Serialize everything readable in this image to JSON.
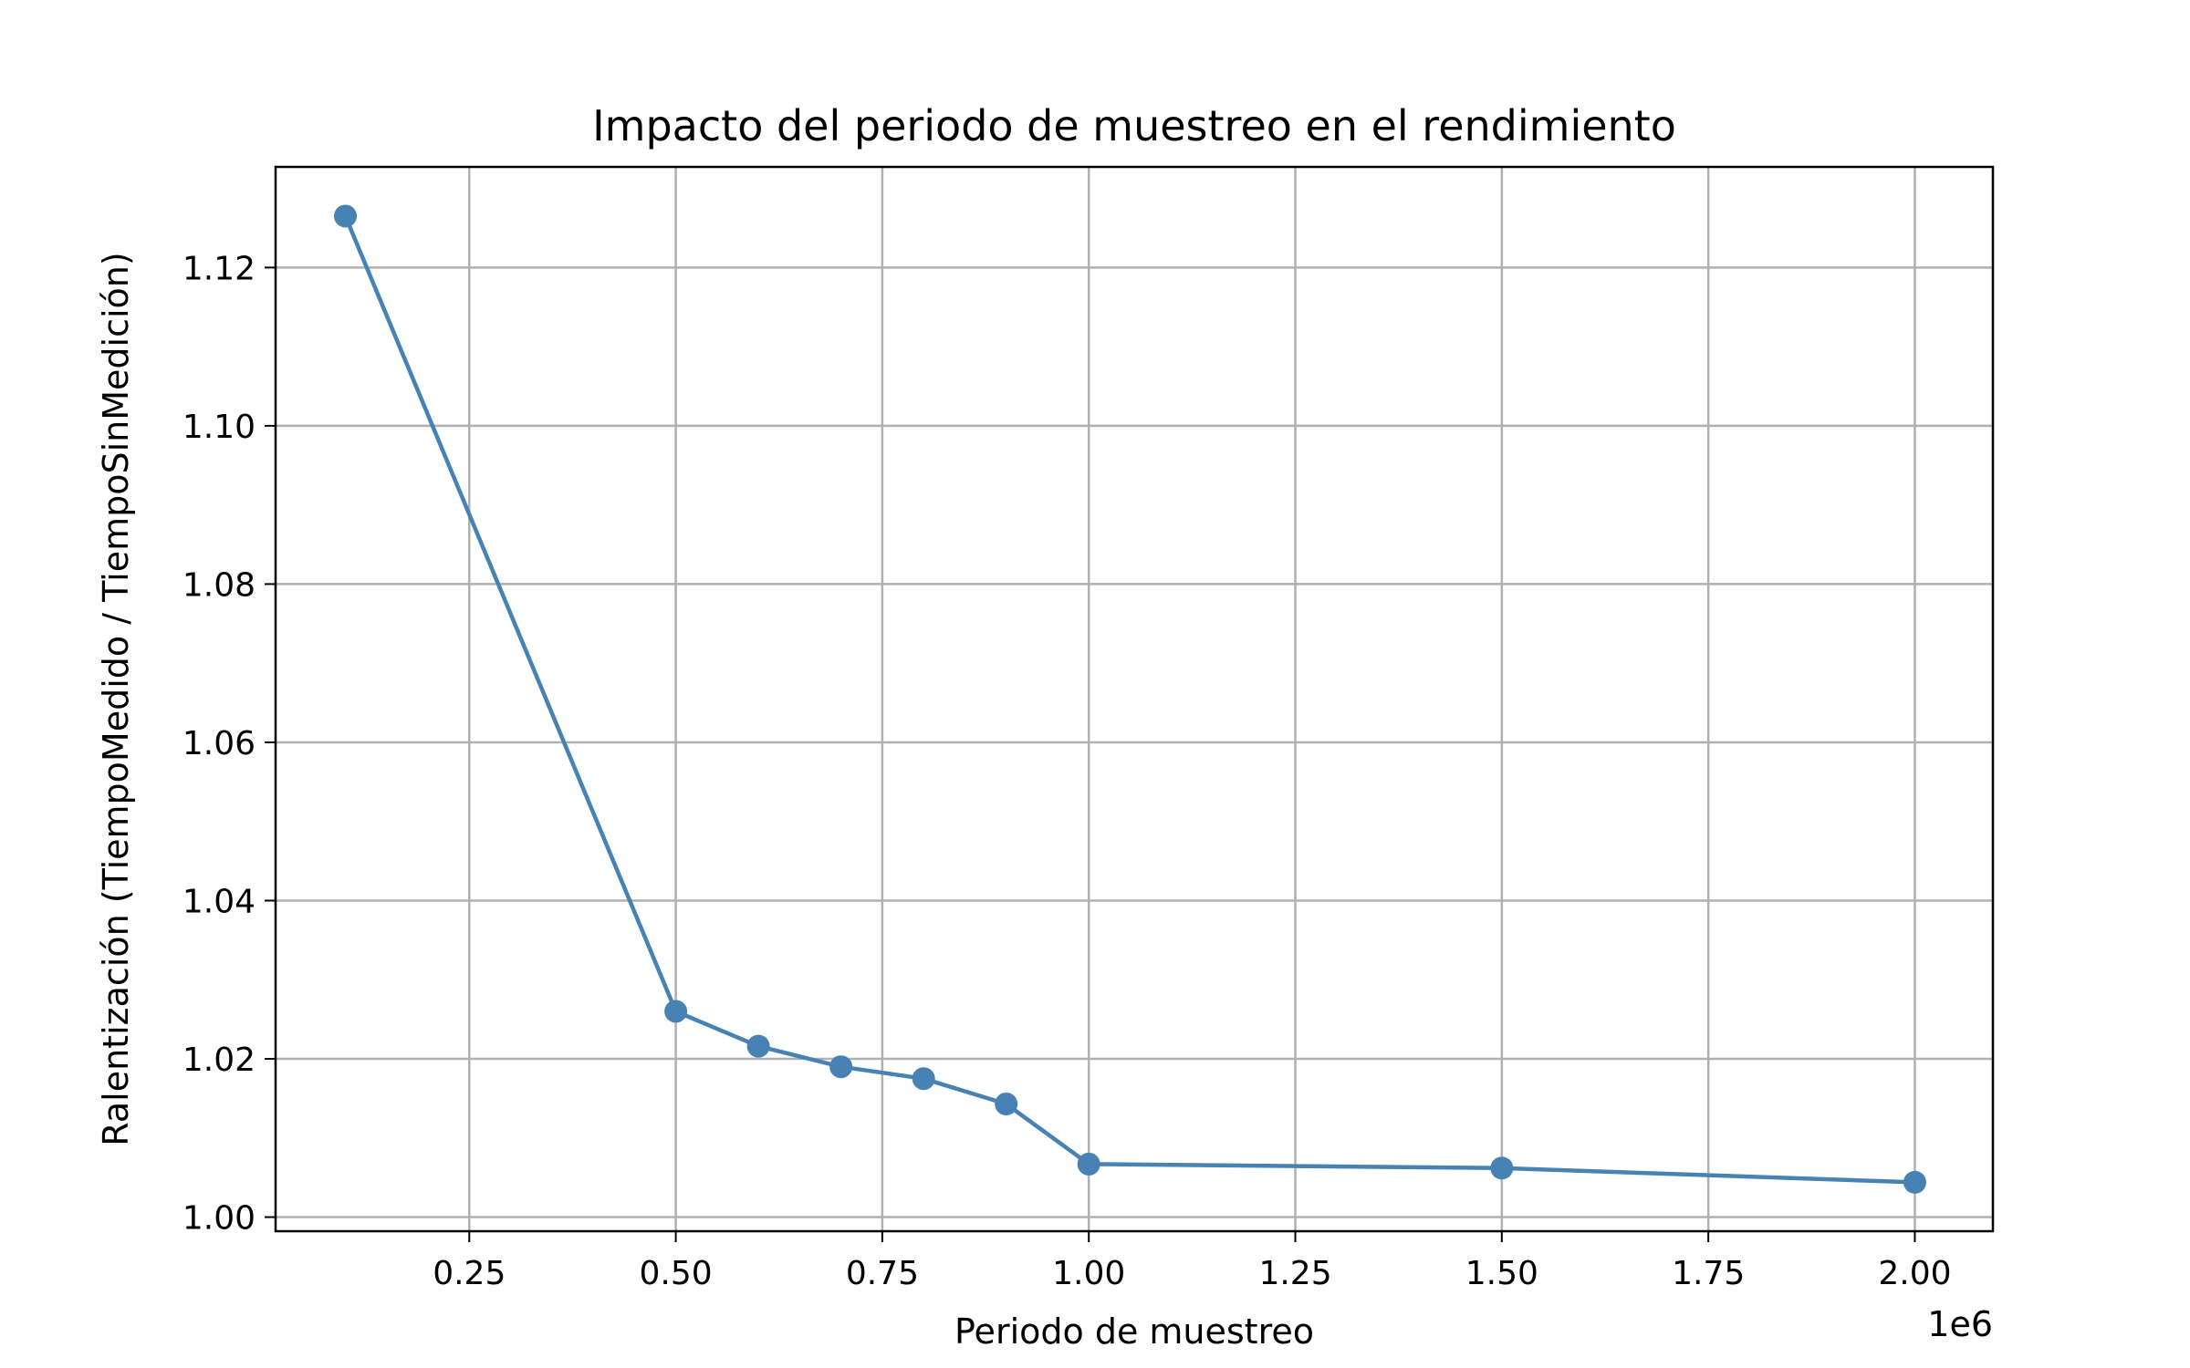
{
  "chart_data": {
    "type": "line",
    "title": "Impacto del periodo de muestreo en el rendimiento",
    "xlabel": "Periodo de muestreo",
    "ylabel": "Ralentización (TiempoMedido / TiempoSinMedición)",
    "x_offset_label": "1e6",
    "x_scale": 1000000,
    "xlim": [
      0.0155,
      2.0945
    ],
    "ylim": [
      0.99822,
      1.13272
    ],
    "xticks": [
      0.25,
      0.5,
      0.75,
      1.0,
      1.25,
      1.5,
      1.75,
      2.0
    ],
    "xtick_labels": [
      "0.25",
      "0.50",
      "0.75",
      "1.00",
      "1.25",
      "1.50",
      "1.75",
      "2.00"
    ],
    "yticks": [
      1.0,
      1.02,
      1.04,
      1.06,
      1.08,
      1.1,
      1.12
    ],
    "ytick_labels": [
      "1.00",
      "1.02",
      "1.04",
      "1.06",
      "1.08",
      "1.10",
      "1.12"
    ],
    "grid": true,
    "series": [
      {
        "color": "#4682b4",
        "marker": "circle",
        "x": [
          100000,
          500000,
          600000,
          700000,
          800000,
          900000,
          1000000,
          1500000,
          2000000
        ],
        "y": [
          1.1265,
          1.026,
          1.0216,
          1.019,
          1.0175,
          1.0143,
          1.0067,
          1.0062,
          1.0044
        ]
      }
    ]
  }
}
